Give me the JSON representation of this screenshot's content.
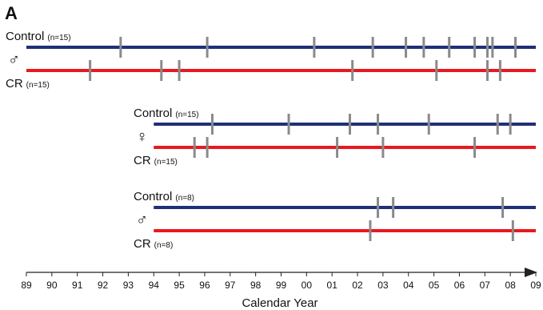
{
  "panel_label": "A",
  "chart_data": {
    "type": "timeline",
    "xlabel": "Calendar Year",
    "x_range": [
      1989,
      2009
    ],
    "x_tick_labels": [
      "89",
      "90",
      "91",
      "92",
      "93",
      "94",
      "95",
      "96",
      "97",
      "98",
      "99",
      "00",
      "01",
      "02",
      "03",
      "04",
      "05",
      "06",
      "07",
      "08",
      "09"
    ],
    "colors": {
      "Control": "#1f2f7a",
      "CR": "#e8191e",
      "event": "#8a8a8a",
      "axis": "#222222"
    },
    "groups": [
      {
        "symbol": "♂",
        "start_year": 1989,
        "tracks": [
          {
            "name": "Control",
            "n_label": "(n=15)",
            "events": [
              1992.7,
              1996.1,
              2000.3,
              2002.6,
              2003.9,
              2004.6,
              2005.6,
              2006.6,
              2007.1,
              2007.3,
              2008.2
            ]
          },
          {
            "name": "CR",
            "n_label": "(n=15)",
            "events": [
              1991.5,
              1994.3,
              1995.0,
              2001.8,
              2005.1,
              2007.1,
              2007.6
            ]
          }
        ]
      },
      {
        "symbol": "♀",
        "start_year": 1994,
        "tracks": [
          {
            "name": "Control",
            "n_label": "(n=15)",
            "events": [
              1996.3,
              1999.3,
              2001.7,
              2002.8,
              2004.8,
              2007.5,
              2008.0
            ]
          },
          {
            "name": "CR",
            "n_label": "(n=15)",
            "events": [
              1995.6,
              1996.1,
              2001.2,
              2003.0,
              2006.6
            ]
          }
        ]
      },
      {
        "symbol": "♂",
        "start_year": 1994,
        "tracks": [
          {
            "name": "Control",
            "n_label": "(n=8)",
            "events": [
              2002.8,
              2003.4,
              2007.7
            ]
          },
          {
            "name": "CR",
            "n_label": "(n=8)",
            "events": [
              2002.5,
              2008.1
            ]
          }
        ]
      }
    ]
  }
}
